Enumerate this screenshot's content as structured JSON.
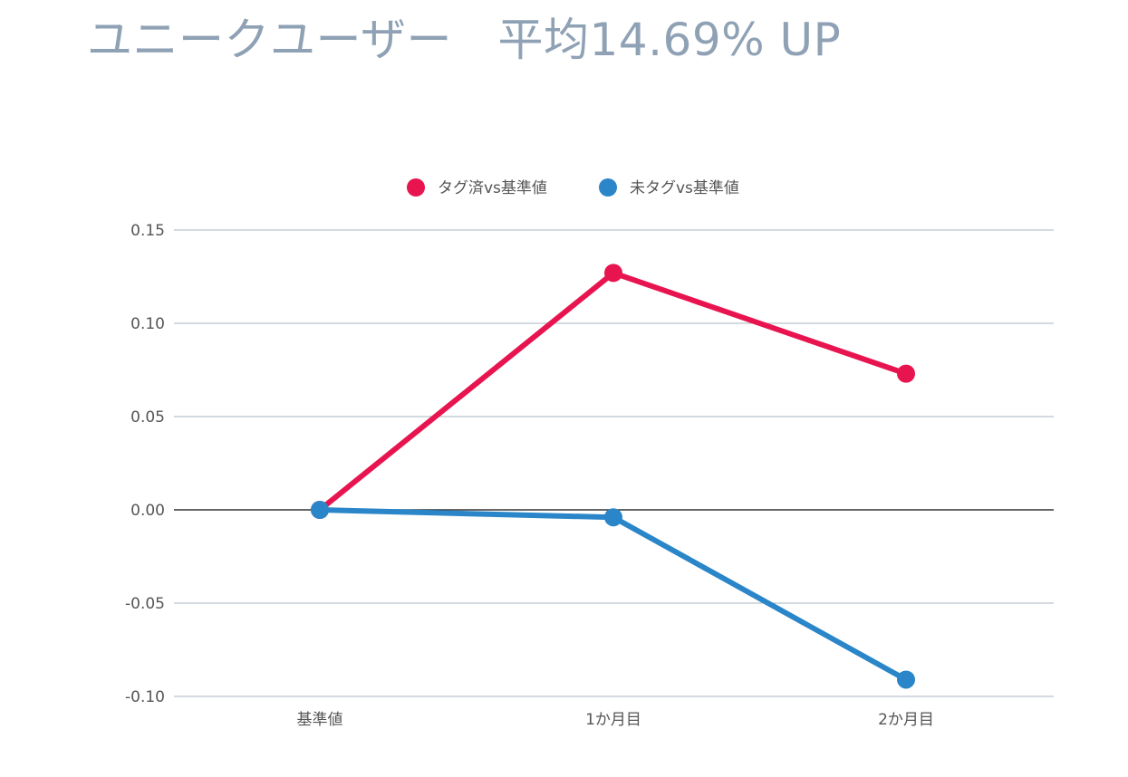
{
  "page": {
    "title": "ユニークユーザー　平均14.69% UP"
  },
  "chart_data": {
    "type": "line",
    "title": "ユニークユーザー　平均14.69% UP",
    "xlabel": "",
    "ylabel": "",
    "categories": [
      "基準値",
      "1か月目",
      "2か月目"
    ],
    "series": [
      {
        "name": "タグ済vs基準値",
        "color": "#e8144f",
        "values": [
          0.0,
          0.127,
          0.073
        ]
      },
      {
        "name": "未タグvs基準値",
        "color": "#2a86c8",
        "values": [
          0.0,
          -0.004,
          -0.091
        ]
      }
    ],
    "ylim": [
      -0.1,
      0.15
    ],
    "yticks": [
      0.15,
      0.1,
      0.05,
      0.0,
      -0.05,
      -0.1
    ],
    "ytick_labels": [
      "0.15",
      "0.10",
      "0.05",
      "0.00",
      "-0.05",
      "-0.10"
    ],
    "grid": true,
    "legend_position": "top-center",
    "colors": {
      "gridline": "#a9b4bf",
      "zeroline": "#333333",
      "title": "#8fa1b4"
    }
  }
}
